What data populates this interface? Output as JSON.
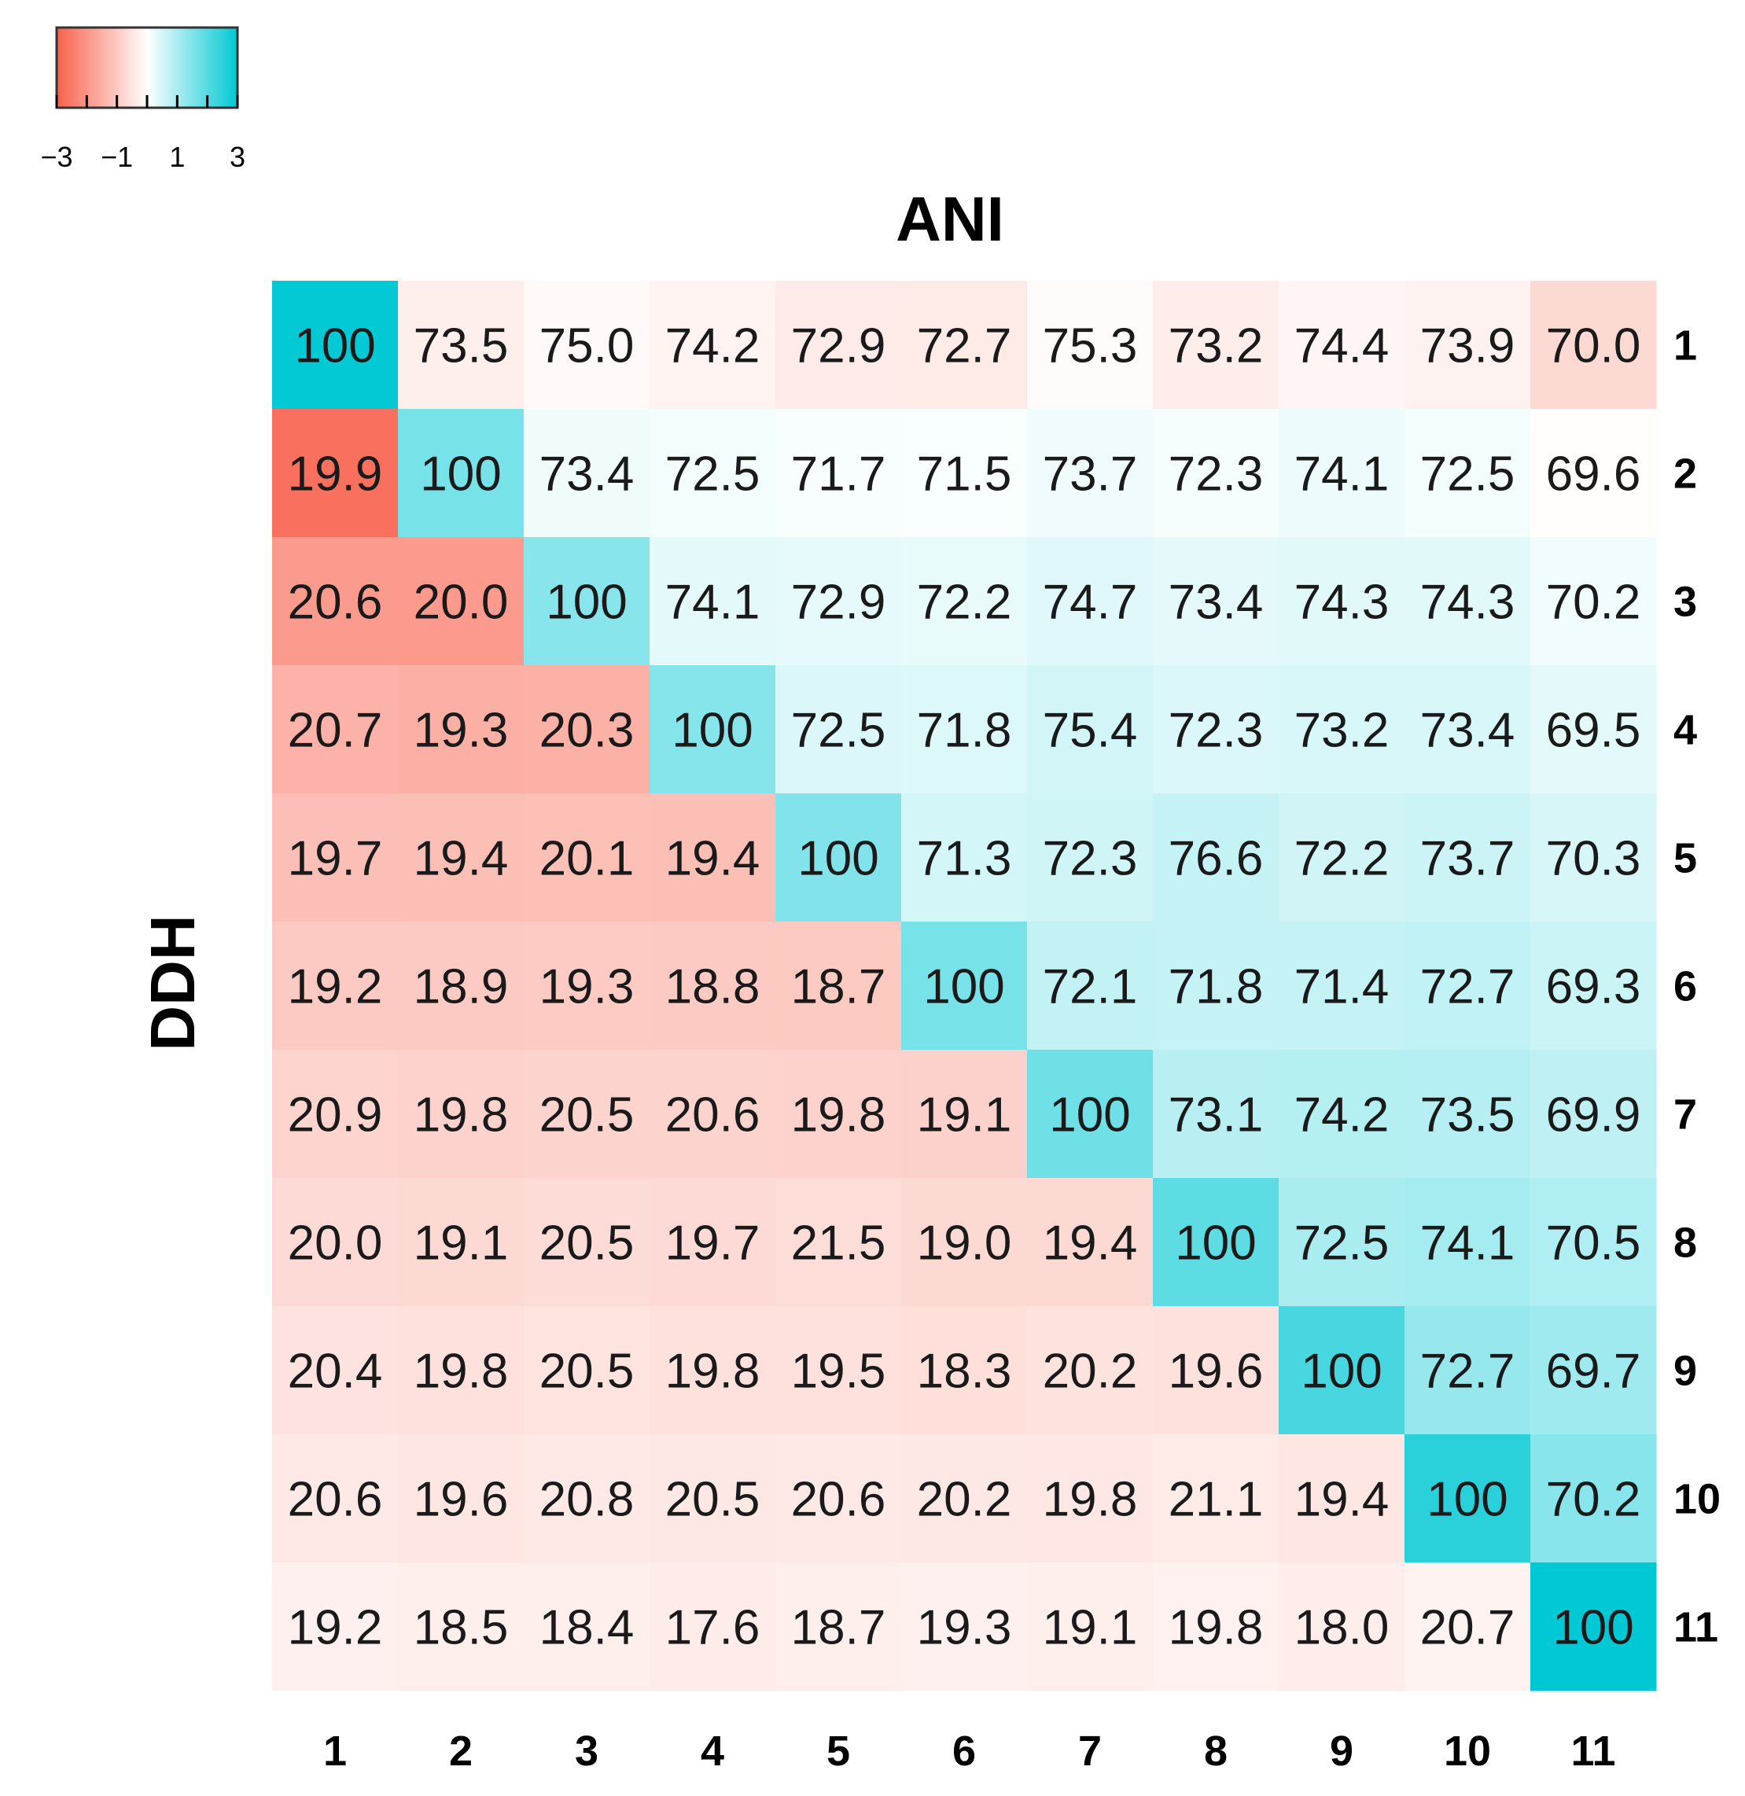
{
  "chart_data": {
    "type": "heatmap",
    "title": "ANI",
    "ylabel": "DDH",
    "xlabel": "",
    "x_labels": [
      "1",
      "2",
      "3",
      "4",
      "5",
      "6",
      "7",
      "8",
      "9",
      "10",
      "11"
    ],
    "y_labels": [
      "1",
      "2",
      "3",
      "4",
      "5",
      "6",
      "7",
      "8",
      "9",
      "10",
      "11"
    ],
    "values": [
      [
        "100",
        "73.5",
        "75.0",
        "74.2",
        "72.9",
        "72.7",
        "75.3",
        "73.2",
        "74.4",
        "73.9",
        "70.0"
      ],
      [
        "19.9",
        "100",
        "73.4",
        "72.5",
        "71.7",
        "71.5",
        "73.7",
        "72.3",
        "74.1",
        "72.5",
        "69.6"
      ],
      [
        "20.6",
        "20.0",
        "100",
        "74.1",
        "72.9",
        "72.2",
        "74.7",
        "73.4",
        "74.3",
        "74.3",
        "70.2"
      ],
      [
        "20.7",
        "19.3",
        "20.3",
        "100",
        "72.5",
        "71.8",
        "75.4",
        "72.3",
        "73.2",
        "73.4",
        "69.5"
      ],
      [
        "19.7",
        "19.4",
        "20.1",
        "19.4",
        "100",
        "71.3",
        "72.3",
        "76.6",
        "72.2",
        "73.7",
        "70.3"
      ],
      [
        "19.2",
        "18.9",
        "19.3",
        "18.8",
        "18.7",
        "100",
        "72.1",
        "71.8",
        "71.4",
        "72.7",
        "69.3"
      ],
      [
        "20.9",
        "19.8",
        "20.5",
        "20.6",
        "19.8",
        "19.1",
        "100",
        "73.1",
        "74.2",
        "73.5",
        "69.9"
      ],
      [
        "20.0",
        "19.1",
        "20.5",
        "19.7",
        "21.5",
        "19.0",
        "19.4",
        "100",
        "72.5",
        "74.1",
        "70.5"
      ],
      [
        "20.4",
        "19.8",
        "20.5",
        "19.8",
        "19.5",
        "18.3",
        "20.2",
        "19.6",
        "100",
        "72.7",
        "69.7"
      ],
      [
        "20.6",
        "19.6",
        "20.8",
        "20.5",
        "20.6",
        "20.2",
        "19.8",
        "21.1",
        "19.4",
        "100",
        "70.2"
      ],
      [
        "19.2",
        "18.5",
        "18.4",
        "17.6",
        "18.7",
        "19.3",
        "19.1",
        "19.8",
        "18.0",
        "20.7",
        "100"
      ]
    ],
    "color_scale": {
      "range": [
        -3,
        3
      ],
      "low_color": "#f8614c",
      "mid_color": "#ffffff",
      "high_color": "#00c8d4",
      "tick_labels": [
        "−3",
        "−1",
        "1",
        "3"
      ],
      "ticks": [
        -3,
        -1,
        1,
        3
      ]
    },
    "legend_position": "top-left",
    "grid": false
  }
}
